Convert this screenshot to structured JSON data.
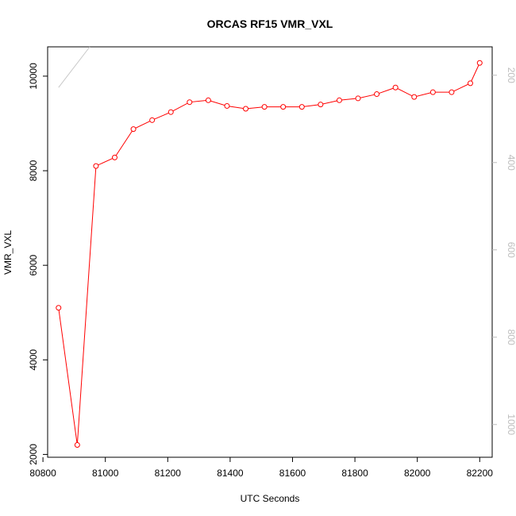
{
  "chart_data": {
    "type": "line",
    "title": "ORCAS RF15 VMR_VXL",
    "xlabel": "UTC Seconds",
    "ylabel": "VMR_VXL",
    "xlim": [
      80815,
      82240
    ],
    "ylim": [
      1940,
      10620
    ],
    "x_ticks": [
      80800,
      81000,
      81200,
      81400,
      81600,
      81800,
      82000,
      82200
    ],
    "y_ticks": [
      2000,
      4000,
      6000,
      8000,
      10000
    ],
    "y2_lim": [
      1075,
      135
    ],
    "y2_ticks": [
      200,
      400,
      600,
      800,
      1000
    ],
    "y2_inverted": true,
    "colors": {
      "main": "#ff0000",
      "secondary": "#c8c8c8",
      "right_axis": "#bdbdbd"
    },
    "series": [
      {
        "color": "#ff0000",
        "marker": "open-circle",
        "x": [
          80850,
          80910,
          80970,
          81030,
          81090,
          81150,
          81210,
          81270,
          81330,
          81390,
          81450,
          81510,
          81570,
          81630,
          81690,
          81750,
          81810,
          81870,
          81930,
          81990,
          82050,
          82110,
          82170,
          82200
        ],
        "y": [
          5100,
          2200,
          8100,
          8280,
          8880,
          9070,
          9240,
          9450,
          9490,
          9370,
          9310,
          9350,
          9350,
          9350,
          9400,
          9490,
          9530,
          9620,
          9760,
          9560,
          9660,
          9660,
          9850,
          10280
        ]
      },
      {
        "color": "#c8c8c8",
        "axis": "right",
        "x": [
          80850,
          80950
        ],
        "y": [
          228,
          135
        ]
      }
    ]
  }
}
